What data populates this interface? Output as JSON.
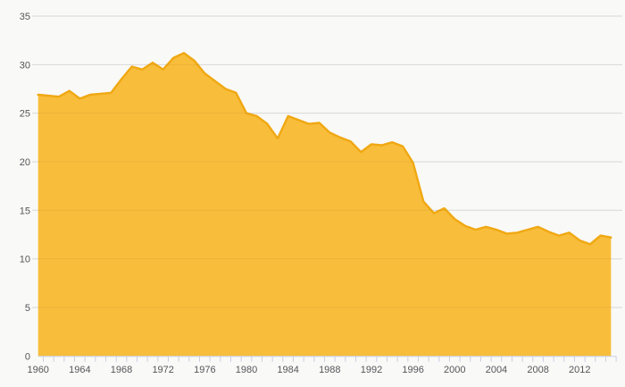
{
  "chart_data": {
    "type": "area",
    "title": "",
    "xlabel": "",
    "ylabel": "",
    "legend": "none",
    "grid": "horizontal",
    "x": [
      1960,
      1961,
      1962,
      1963,
      1964,
      1965,
      1966,
      1967,
      1968,
      1969,
      1970,
      1971,
      1972,
      1973,
      1974,
      1975,
      1976,
      1977,
      1978,
      1979,
      1980,
      1981,
      1982,
      1983,
      1984,
      1985,
      1986,
      1987,
      1988,
      1989,
      1990,
      1991,
      1992,
      1993,
      1994,
      1995,
      1996,
      1997,
      1998,
      1999,
      2000,
      2001,
      2002,
      2003,
      2004,
      2005,
      2006,
      2007,
      2008,
      2009,
      2010,
      2011,
      2012,
      2013,
      2014,
      2015
    ],
    "values": [
      26.9,
      26.8,
      26.7,
      27.3,
      26.5,
      26.9,
      27.0,
      27.1,
      28.5,
      29.8,
      29.5,
      30.2,
      29.5,
      30.7,
      31.2,
      30.4,
      29.1,
      28.3,
      27.5,
      27.1,
      25.0,
      24.7,
      23.9,
      22.4,
      24.7,
      24.3,
      23.9,
      24.0,
      23.0,
      22.5,
      22.1,
      21.0,
      21.8,
      21.7,
      22.0,
      21.6,
      19.9,
      15.9,
      14.7,
      15.2,
      14.1,
      13.4,
      13.0,
      13.3,
      13.0,
      12.6,
      12.7,
      13.0,
      13.3,
      12.8,
      12.4,
      12.7,
      11.9,
      11.5,
      12.4,
      12.2
    ],
    "ylim": [
      0,
      35
    ],
    "yticks": [
      0,
      5,
      10,
      15,
      20,
      25,
      30,
      35
    ],
    "ytick_labels": [
      "0",
      "5",
      "10",
      "15",
      "20",
      "25",
      "30",
      "35"
    ],
    "xtick_labels": [
      "1960",
      "1964",
      "1968",
      "1972",
      "1976",
      "1980",
      "1984",
      "1988",
      "1992",
      "1996",
      "2000",
      "2004",
      "2008",
      "2012"
    ],
    "xtick_label_years": [
      1960,
      1964,
      1968,
      1972,
      1976,
      1980,
      1984,
      1988,
      1992,
      1996,
      2000,
      2004,
      2008,
      2012
    ],
    "colors": {
      "background": "#f9f9f7",
      "area_fill": "#f8bd3b",
      "area_stroke": "#f0a812",
      "gridline": "#e4e4e4",
      "axis_line": "#c9cfe3",
      "tick": "#c9cfe3",
      "label_text": "#55565a"
    }
  }
}
